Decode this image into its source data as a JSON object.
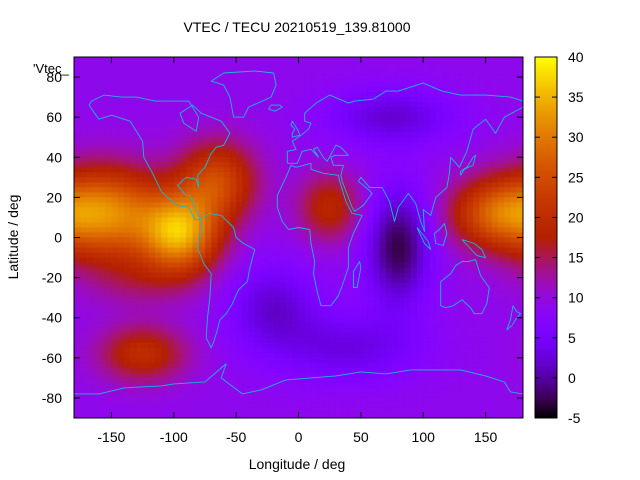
{
  "chart_data": {
    "type": "heatmap",
    "title": "VTEC / TECU 20210519_139.81000",
    "xlabel": "Longitude / deg",
    "ylabel": "Latitude / deg",
    "xlim": [
      -180,
      180
    ],
    "ylim": [
      -90,
      90
    ],
    "xticks": [
      -150,
      -100,
      -50,
      0,
      50,
      100,
      150
    ],
    "yticks": [
      -80,
      -60,
      -40,
      -20,
      0,
      20,
      40,
      60,
      80
    ],
    "colorbar": {
      "range": [
        -5,
        40
      ],
      "ticks": [
        -5,
        0,
        5,
        10,
        15,
        20,
        25,
        30,
        35,
        40
      ]
    },
    "legend_key": "'Vtec_",
    "base_value": 9,
    "features": [
      {
        "name": "pacific-crest",
        "lon": -155,
        "lat": 12,
        "value": 31,
        "sigma_lon": 32,
        "sigma_lat": 16
      },
      {
        "name": "south-america-crest",
        "lon": -95,
        "lat": 2,
        "value": 33,
        "sigma_lon": 22,
        "sigma_lat": 14
      },
      {
        "name": "north-atlantic-high",
        "lon": -65,
        "lat": 28,
        "value": 24,
        "sigma_lon": 22,
        "sigma_lat": 14
      },
      {
        "name": "central-pacific-low",
        "lon": -130,
        "lat": -22,
        "value": 13,
        "sigma_lon": 30,
        "sigma_lat": 10
      },
      {
        "name": "south-pacific-high",
        "lon": -125,
        "lat": -58,
        "value": 20,
        "sigma_lon": 25,
        "sigma_lat": 10
      },
      {
        "name": "africa-high",
        "lon": 25,
        "lat": 15,
        "value": 19,
        "sigma_lon": 18,
        "sigma_lat": 12
      },
      {
        "name": "asia-pacific-crest",
        "lon": 155,
        "lat": 12,
        "value": 23,
        "sigma_lon": 25,
        "sigma_lat": 12
      },
      {
        "name": "indian-ocean-low",
        "lon": 80,
        "lat": -5,
        "value": -3,
        "sigma_lon": 18,
        "sigma_lat": 20
      },
      {
        "name": "siberia-low",
        "lon": 75,
        "lat": 60,
        "value": 2,
        "sigma_lon": 35,
        "sigma_lat": 10
      },
      {
        "name": "south-atlantic-low",
        "lon": -20,
        "lat": -35,
        "value": 2,
        "sigma_lon": 25,
        "sigma_lat": 15
      },
      {
        "name": "southern-ocean-low",
        "lon": 40,
        "lat": -55,
        "value": 3,
        "sigma_lon": 40,
        "sigma_lat": 12
      }
    ]
  }
}
